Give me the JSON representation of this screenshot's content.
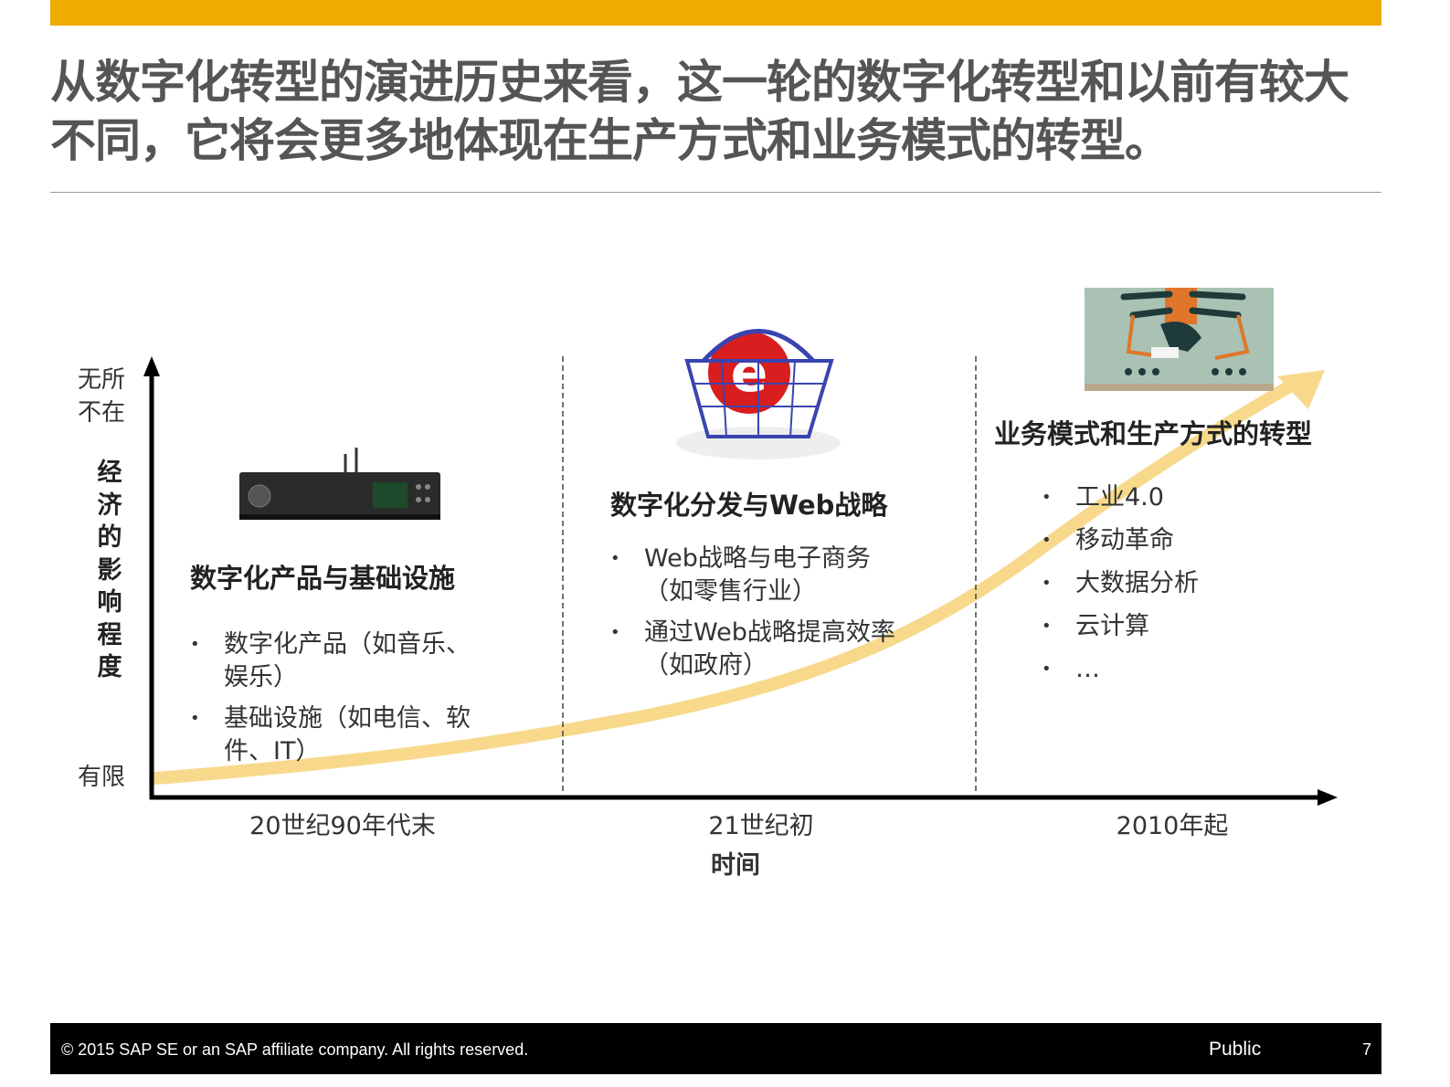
{
  "title": "从数字化转型的演进历史来看，这一轮的数字化转型和以前有较大不同，它将会更多地体现在生产方式和业务模式的转型。",
  "y_axis": {
    "top_label": "无所不在",
    "label": "经济的影响程度",
    "bottom_label": "有限"
  },
  "x_axis": {
    "label": "时间",
    "ticks": [
      "20世纪90年代末",
      "21世纪初",
      "2010年起"
    ]
  },
  "sections": [
    {
      "heading": "数字化产品与基础设施",
      "image_icon": "stereo-device-icon",
      "bullets": [
        "数字化产品（如音乐、娱乐）",
        "基础设施（如电信、软件、IT）"
      ]
    },
    {
      "heading": "数字化分发与Web战略",
      "image_icon": "shopping-basket-icon",
      "bullets": [
        "Web战略与电子商务（如零售行业）",
        "通过Web战略提高效率（如政府）"
      ]
    },
    {
      "heading": "业务模式和生产方式的转型",
      "image_icon": "robotic-arms-icon",
      "bullets": [
        "工业4.0",
        "移动革命",
        "大数据分析",
        "云计算",
        "…"
      ]
    }
  ],
  "footer": {
    "copyright": "©  2015 SAP SE or an SAP affiliate company. All rights reserved.",
    "classification": "Public",
    "page": "7"
  },
  "colors": {
    "accent": "#F0AB00",
    "curve": "#F8D98C",
    "title": "#555555"
  }
}
